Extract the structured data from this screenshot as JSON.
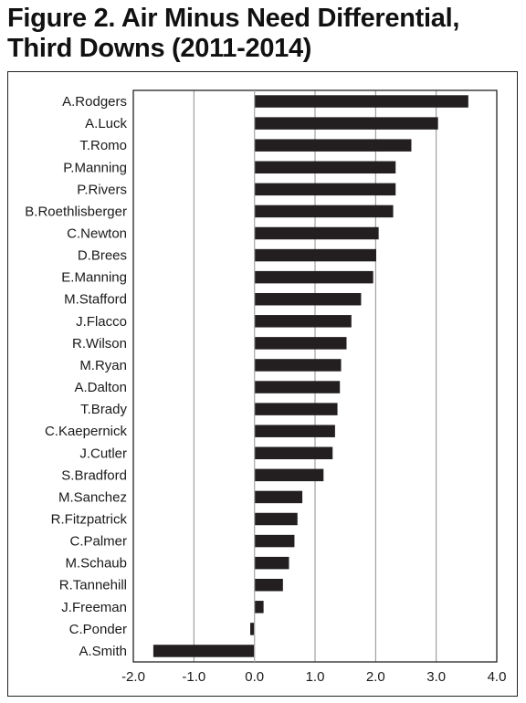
{
  "figure": {
    "title": "Figure 2. Air Minus Need Differential, Third Downs (2011-2014)"
  },
  "chart_data": {
    "type": "bar",
    "orientation": "horizontal",
    "title": "Figure 2. Air Minus Need Differential, Third Downs (2011-2014)",
    "xlabel": "",
    "ylabel": "",
    "xlim": [
      -2.0,
      4.0
    ],
    "xticks": [
      "-2.0",
      "-1.0",
      "0.0",
      "1.0",
      "2.0",
      "3.0",
      "4.0"
    ],
    "grid": "vertical",
    "legend": "none",
    "bar_color": "#231f20",
    "categories": [
      "A.Rodgers",
      "A.Luck",
      "T.Romo",
      "P.Manning",
      "P.Rivers",
      "B.Roethlisberger",
      "C.Newton",
      "D.Brees",
      "E.Manning",
      "M.Stafford",
      "J.Flacco",
      "R.Wilson",
      "M.Ryan",
      "A.Dalton",
      "T.Brady",
      "C.Kaepernick",
      "J.Cutler",
      "S.Bradford",
      "M.Sanchez",
      "R.Fitzpatrick",
      "C.Palmer",
      "M.Schaub",
      "R.Tannehill",
      "J.Freeman",
      "C.Ponder",
      "A.Smith"
    ],
    "values": [
      3.53,
      3.03,
      2.59,
      2.33,
      2.33,
      2.29,
      2.05,
      2.01,
      1.96,
      1.76,
      1.6,
      1.52,
      1.43,
      1.41,
      1.37,
      1.33,
      1.29,
      1.14,
      0.79,
      0.71,
      0.66,
      0.57,
      0.47,
      0.15,
      -0.07,
      -1.67
    ]
  }
}
